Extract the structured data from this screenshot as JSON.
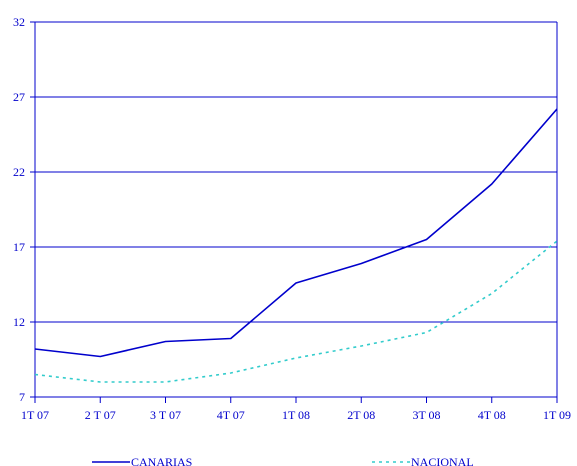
{
  "chart_data": {
    "type": "line",
    "categories": [
      "1T 07",
      "2 T 07",
      "3 T 07",
      "4T 07",
      "1T 08",
      "2T 08",
      "3T 08",
      "4T 08",
      "1T 09"
    ],
    "ylim": [
      7,
      32
    ],
    "yticks": [
      "7",
      "12",
      "17",
      "22",
      "27",
      "32"
    ],
    "grid": true,
    "legend_position": "bottom",
    "series": [
      {
        "name": "CANARIAS",
        "color": "#0000cc",
        "style": "solid",
        "values": [
          10.2,
          9.7,
          10.7,
          10.9,
          14.6,
          15.9,
          17.5,
          21.2,
          26.2
        ]
      },
      {
        "name": "NACIONAL",
        "color": "#33cccc",
        "style": "dotted",
        "values": [
          8.5,
          8.0,
          8.0,
          8.6,
          9.6,
          10.4,
          11.3,
          13.9,
          17.4
        ]
      }
    ],
    "axis_color": "#0000cc"
  }
}
